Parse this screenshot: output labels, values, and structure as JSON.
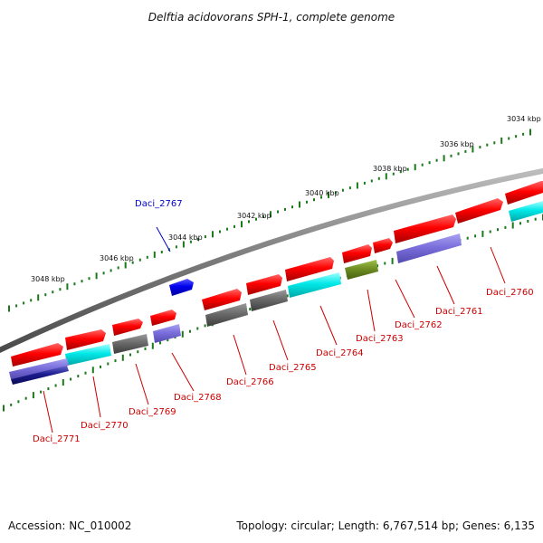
{
  "title": "Delftia acidovorans SPH-1, complete genome",
  "footer": {
    "accession": "Accession: NC_010002",
    "topology": "Topology: circular; Length: 6,767,514 bp; Genes: 6,135"
  },
  "colors": {
    "backbone": "#7f7f7f",
    "tick": "#1a7a1a",
    "red_label": "#cc0000",
    "blue_label": "#0000cc"
  },
  "kbp_labels": [
    "3034 kbp",
    "3036 kbp",
    "3038 kbp",
    "3040 kbp",
    "3042 kbp",
    "3044 kbp",
    "3046 kbp",
    "3048 kbp"
  ],
  "genes": [
    {
      "label": "Daci_2760",
      "color": "red"
    },
    {
      "label": "Daci_2761",
      "color": "red"
    },
    {
      "label": "Daci_2762",
      "color": "red"
    },
    {
      "label": "Daci_2763",
      "color": "red"
    },
    {
      "label": "Daci_2764",
      "color": "red"
    },
    {
      "label": "Daci_2765",
      "color": "red"
    },
    {
      "label": "Daci_2766",
      "color": "red"
    },
    {
      "label": "Daci_2767",
      "color": "blue"
    },
    {
      "label": "Daci_2768",
      "color": "red"
    },
    {
      "label": "Daci_2769",
      "color": "red"
    },
    {
      "label": "Daci_2770",
      "color": "red"
    },
    {
      "label": "Daci_2771",
      "color": "red"
    }
  ]
}
